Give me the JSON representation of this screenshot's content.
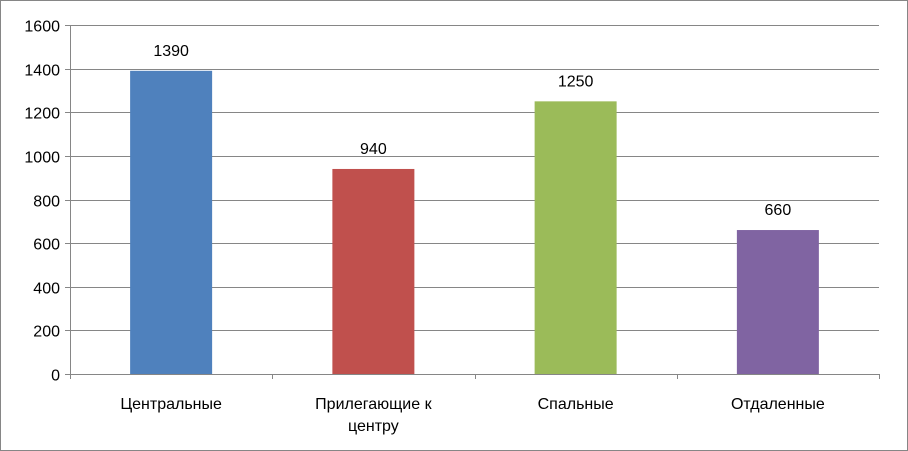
{
  "chart_data": {
    "type": "bar",
    "title": "",
    "xlabel": "",
    "ylabel": "",
    "categories": [
      [
        "Центральные"
      ],
      [
        "Прилегающие к",
        "центру"
      ],
      [
        "Спальные"
      ],
      [
        "Отдаленные"
      ]
    ],
    "values": [
      1390,
      940,
      1250,
      660
    ],
    "colors": [
      "#4F81BD",
      "#C0504D",
      "#9BBB59",
      "#8064A2"
    ],
    "ylim": [
      0,
      1600
    ],
    "yticks": [
      0,
      200,
      400,
      600,
      800,
      1000,
      1200,
      1400,
      1600
    ],
    "grid": true,
    "legend": "none",
    "data_labels": true
  }
}
